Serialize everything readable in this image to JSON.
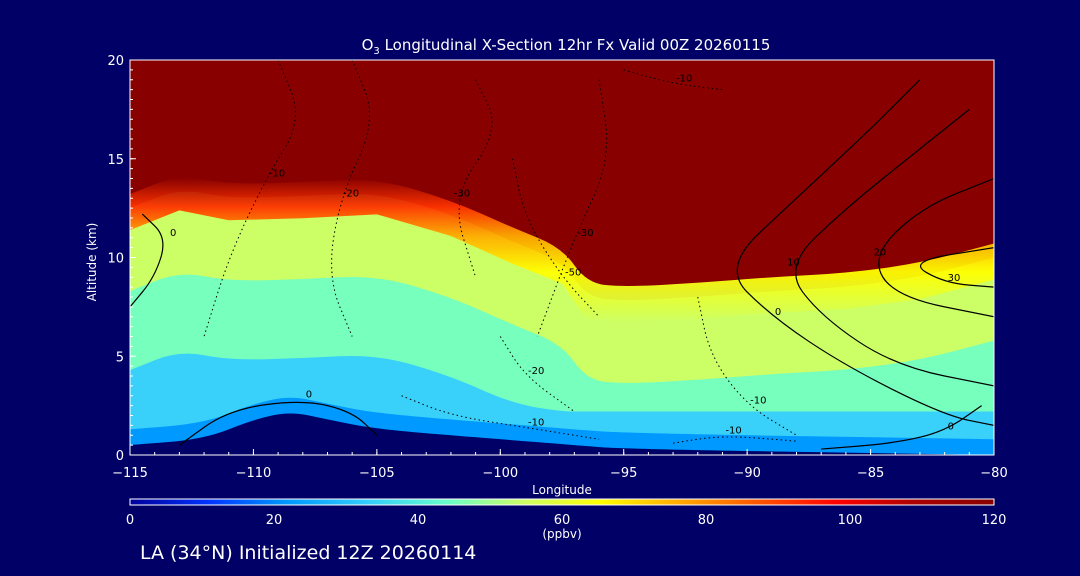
{
  "chart_data": {
    "type": "heatmap",
    "title_parts": [
      "O",
      "3",
      " Longitudinal X-Section 12hr  Fx Valid 00Z 20260115"
    ],
    "xlabel": "Longitude",
    "ylabel": "Altitude (km)",
    "xlim": [
      -115,
      -80
    ],
    "ylim": [
      0,
      20
    ],
    "x_ticks": [
      -115,
      -110,
      -105,
      -100,
      -95,
      -90,
      -85,
      -80
    ],
    "y_ticks": [
      0,
      5,
      10,
      15,
      20
    ],
    "colorbar": {
      "min": 0,
      "max": 120,
      "ticks": [
        0,
        20,
        40,
        60,
        80,
        100,
        120
      ],
      "unit": "(ppbv)",
      "colors": [
        "#000099",
        "#0033ff",
        "#0099ff",
        "#33ccff",
        "#66ffcc",
        "#ccff66",
        "#ffff00",
        "#ffaa00",
        "#ff5500",
        "#ff0000",
        "#aa0000",
        "#880000"
      ]
    },
    "field": {
      "stratosphere_value": 120,
      "tropopause_km": [
        [
          -115,
          12.5
        ],
        [
          -113,
          13.5
        ],
        [
          -111,
          13.0
        ],
        [
          -108,
          13.1
        ],
        [
          -105,
          13.3
        ],
        [
          -102,
          12.2
        ],
        [
          -99.5,
          10.8
        ],
        [
          -97.5,
          9.8
        ],
        [
          -96.5,
          8.0
        ],
        [
          -95,
          7.8
        ],
        [
          -92,
          8.0
        ],
        [
          -89,
          8.3
        ],
        [
          -86,
          8.5
        ],
        [
          -83,
          9.0
        ],
        [
          -80,
          10.0
        ]
      ],
      "surface_km": [
        [
          -115,
          0.5
        ],
        [
          -112,
          0.8
        ],
        [
          -110,
          1.8
        ],
        [
          -108.5,
          2.2
        ],
        [
          -107,
          1.8
        ],
        [
          -105,
          1.3
        ],
        [
          -100,
          0.8
        ],
        [
          -97,
          0.5
        ],
        [
          -95,
          0.3
        ],
        [
          -80,
          0.0
        ]
      ],
      "upper_troposphere_value": 62,
      "mid_troposphere_value": 48,
      "lower_troposphere_value": 35,
      "boundary_layer_value": 25
    },
    "contours": [
      {
        "style": "dotted",
        "label": "-10",
        "points": [
          [
            -109,
            20
          ],
          [
            -108,
            17
          ],
          [
            -109.5,
            14
          ],
          [
            -111,
            10
          ],
          [
            -112,
            6
          ]
        ]
      },
      {
        "style": "dotted",
        "label": "-20",
        "points": [
          [
            -106,
            20
          ],
          [
            -105,
            17
          ],
          [
            -106.5,
            13
          ],
          [
            -107,
            9
          ],
          [
            -106,
            6
          ]
        ]
      },
      {
        "style": "dotted",
        "label": "-30",
        "points": [
          [
            -101,
            19
          ],
          [
            -100,
            16.5
          ],
          [
            -102,
            13
          ],
          [
            -101,
            9
          ]
        ]
      },
      {
        "style": "dotted",
        "label": "-50",
        "points": [
          [
            -99.5,
            15
          ],
          [
            -99,
            12
          ],
          [
            -97.5,
            9
          ],
          [
            -96,
            7
          ]
        ]
      },
      {
        "style": "dotted",
        "label": "-30",
        "points": [
          [
            -96,
            19
          ],
          [
            -95.5,
            15
          ],
          [
            -97,
            11
          ],
          [
            -98.5,
            6
          ]
        ]
      },
      {
        "style": "dotted",
        "label": "-20",
        "points": [
          [
            -100,
            6
          ],
          [
            -99,
            4
          ],
          [
            -97,
            2.2
          ]
        ]
      },
      {
        "style": "dotted",
        "label": "-10",
        "points": [
          [
            -104,
            3
          ],
          [
            -102,
            2
          ],
          [
            -99,
            1.4
          ],
          [
            -96,
            0.8
          ]
        ]
      },
      {
        "style": "dotted",
        "label": "-10",
        "points": [
          [
            -92,
            8
          ],
          [
            -91.5,
            5
          ],
          [
            -90,
            2.5
          ],
          [
            -88,
            1
          ]
        ]
      },
      {
        "style": "dotted",
        "label": "-10",
        "points": [
          [
            -95,
            19.5
          ],
          [
            -93,
            18.8
          ],
          [
            -91,
            18.5
          ]
        ]
      },
      {
        "style": "dotted",
        "label": "-10",
        "points": [
          [
            -93,
            0.6
          ],
          [
            -91,
            1
          ],
          [
            -88,
            0.7
          ]
        ]
      },
      {
        "style": "solid",
        "label": "0",
        "points": [
          [
            -83,
            19
          ],
          [
            -85,
            16.5
          ],
          [
            -88,
            13
          ],
          [
            -91,
            9.5
          ],
          [
            -89,
            7
          ],
          [
            -86,
            4.5
          ],
          [
            -82,
            2
          ],
          [
            -80,
            1.5
          ]
        ]
      },
      {
        "style": "solid",
        "label": "10",
        "points": [
          [
            -81,
            17.5
          ],
          [
            -83,
            15.5
          ],
          [
            -86,
            12.5
          ],
          [
            -88.5,
            9.5
          ],
          [
            -87,
            7
          ],
          [
            -84,
            4.5
          ],
          [
            -80,
            3.5
          ]
        ]
      },
      {
        "style": "solid",
        "label": "20",
        "points": [
          [
            -80,
            14
          ],
          [
            -83,
            12.5
          ],
          [
            -85,
            10
          ],
          [
            -84,
            8
          ],
          [
            -80,
            7
          ]
        ]
      },
      {
        "style": "solid",
        "label": "30",
        "points": [
          [
            -80,
            10.5
          ],
          [
            -83.5,
            9.8
          ],
          [
            -82,
            8.7
          ],
          [
            -80,
            8.5
          ]
        ]
      },
      {
        "style": "solid",
        "label": "0",
        "points": [
          [
            -115,
            7.5
          ],
          [
            -114,
            9
          ],
          [
            -113.5,
            11
          ],
          [
            -114.5,
            12.2
          ]
        ]
      },
      {
        "style": "solid",
        "label": "0",
        "points": [
          [
            -113,
            0.5
          ],
          [
            -111,
            2.3
          ],
          [
            -108,
            2.8
          ],
          [
            -106,
            2.2
          ],
          [
            -105,
            1
          ]
        ]
      },
      {
        "style": "solid",
        "label": "0",
        "points": [
          [
            -87,
            0.3
          ],
          [
            -84,
            0.6
          ],
          [
            -82,
            1.2
          ],
          [
            -80.5,
            2.5
          ]
        ]
      }
    ]
  },
  "footer": "LA (34°N) Initialized 12Z 20260114"
}
